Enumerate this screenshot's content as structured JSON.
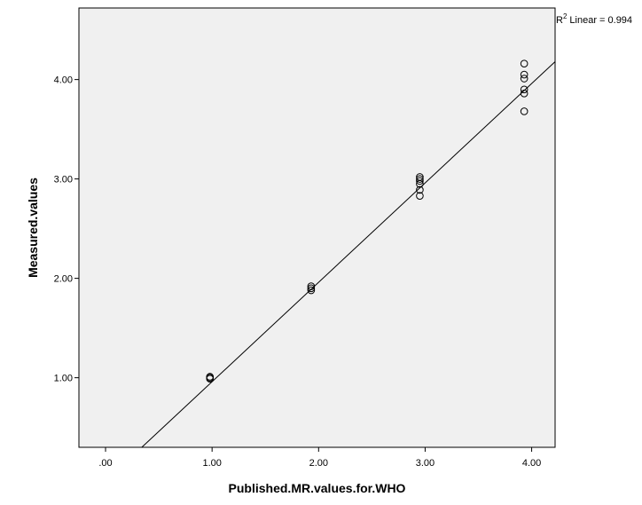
{
  "chart_data": {
    "type": "scatter",
    "xlabel": "Published.MR.values.for.WHO",
    "ylabel": "Measured.values",
    "xlim": [
      -0.25,
      4.22
    ],
    "ylim": [
      0.3,
      4.72
    ],
    "x_ticks": [
      0,
      1,
      2,
      3,
      4
    ],
    "x_tick_labels": [
      ".00",
      "1.00",
      "2.00",
      "3.00",
      "4.00"
    ],
    "y_ticks": [
      1,
      2,
      3,
      4
    ],
    "y_tick_labels": [
      "1.00",
      "2.00",
      "3.00",
      "4.00"
    ],
    "grid": false,
    "plot_background": "#f0f0f0",
    "points": [
      {
        "x": 0.98,
        "y": 1.0
      },
      {
        "x": 0.98,
        "y": 1.01
      },
      {
        "x": 0.98,
        "y": 0.99
      },
      {
        "x": 1.93,
        "y": 1.92
      },
      {
        "x": 1.93,
        "y": 1.9
      },
      {
        "x": 1.93,
        "y": 1.88
      },
      {
        "x": 2.95,
        "y": 3.02
      },
      {
        "x": 2.95,
        "y": 3.0
      },
      {
        "x": 2.95,
        "y": 2.98
      },
      {
        "x": 2.95,
        "y": 2.95
      },
      {
        "x": 2.95,
        "y": 2.89
      },
      {
        "x": 2.95,
        "y": 2.83
      },
      {
        "x": 3.93,
        "y": 4.16
      },
      {
        "x": 3.93,
        "y": 4.05
      },
      {
        "x": 3.93,
        "y": 4.01
      },
      {
        "x": 3.93,
        "y": 3.9
      },
      {
        "x": 3.93,
        "y": 3.86
      },
      {
        "x": 3.93,
        "y": 3.68
      }
    ],
    "fit_line": {
      "slope": 1.0,
      "intercept": -0.04
    },
    "r2_label": "Linear = 0.994",
    "r2_prefix": "R",
    "r2_sup": "2"
  }
}
